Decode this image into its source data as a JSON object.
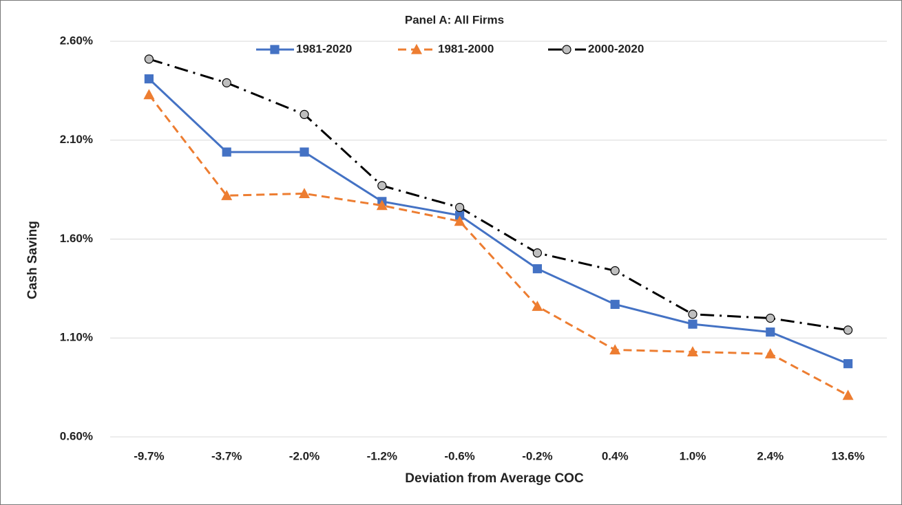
{
  "chart_data": {
    "type": "line",
    "title": "Panel A: All Firms",
    "x_label": "Deviation from Average COC",
    "y_label": "Cash Saving",
    "categories": [
      "-9.7%",
      "-3.7%",
      "-2.0%",
      "-1.2%",
      "-0.6%",
      "-0.2%",
      "0.4%",
      "1.0%",
      "2.4%",
      "13.6%"
    ],
    "series": [
      {
        "name": "1981-2020",
        "color": "#4472c4",
        "line_style": "solid",
        "marker": "square",
        "values": [
          2.41,
          2.04,
          2.04,
          1.79,
          1.72,
          1.45,
          1.27,
          1.17,
          1.13,
          0.97
        ]
      },
      {
        "name": "1981-2000",
        "color": "#ed7d31",
        "line_style": "dashed",
        "marker": "triangle",
        "values": [
          2.33,
          1.82,
          1.83,
          1.77,
          1.69,
          1.26,
          1.04,
          1.03,
          1.02,
          0.81
        ]
      },
      {
        "name": "2000-2020",
        "color": "#000000",
        "line_style": "dashdot",
        "marker": "circle",
        "values": [
          2.51,
          2.39,
          2.23,
          1.87,
          1.76,
          1.53,
          1.44,
          1.22,
          1.2,
          1.14
        ]
      }
    ],
    "ylim": [
      0.6,
      2.6
    ],
    "yticks": [
      {
        "value": 0.6,
        "label": "0.60%"
      },
      {
        "value": 1.1,
        "label": "1.10%"
      },
      {
        "value": 1.6,
        "label": "1.60%"
      },
      {
        "value": 2.1,
        "label": "2.10%"
      },
      {
        "value": 2.6,
        "label": "2.60%"
      }
    ],
    "grid": true,
    "legend": "top"
  }
}
